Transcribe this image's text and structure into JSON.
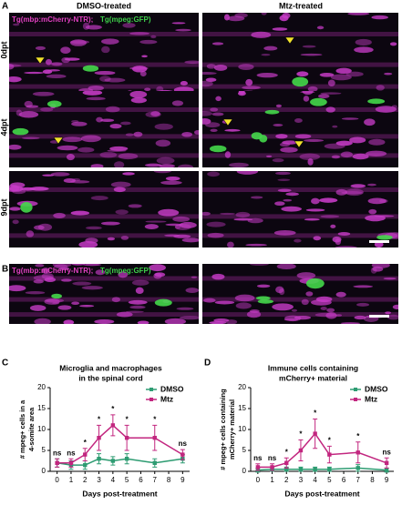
{
  "panel_a": {
    "label": "A",
    "columns": [
      "DMSO-treated",
      "Mtz-treated"
    ],
    "rows": [
      "0dpt",
      "4dpt",
      "9dpt"
    ],
    "overlay": [
      "Tg(mbp:mCherry-NTR);",
      "Tg(mpeg:GFP)"
    ]
  },
  "panel_b": {
    "label": "B",
    "overlay": [
      "Tg(mbp:mCherry-NTR);",
      "Tg(mpeg:GFP)"
    ]
  },
  "chart_data": [
    {
      "type": "line",
      "panel": "C",
      "title": [
        "Microglia and macrophages",
        "in the spinal cord"
      ],
      "ylabel": [
        "# mpeg+ cells in a",
        "4-somite area"
      ],
      "xlabel": "Days post-treatment",
      "x": [
        0,
        1,
        2,
        3,
        4,
        5,
        7,
        9
      ],
      "xlim": [
        -0.5,
        9.5
      ],
      "xticks": [
        0,
        1,
        2,
        3,
        4,
        5,
        6,
        7,
        8,
        9
      ],
      "ylim": [
        0,
        20
      ],
      "yticks": [
        0,
        5,
        10,
        15,
        20
      ],
      "legend": "upper right",
      "series": [
        {
          "name": "DMSO",
          "color": "#2e9c72",
          "values": [
            2,
            1.5,
            1.5,
            3,
            2.5,
            3,
            2,
            3
          ],
          "errors": [
            1,
            1,
            1,
            1.2,
            1,
            1.2,
            1,
            1
          ]
        },
        {
          "name": "Mtz",
          "color": "#c2267f",
          "values": [
            2,
            2,
            4,
            8,
            11,
            8,
            8,
            4
          ],
          "errors": [
            1,
            1,
            1.5,
            3,
            2.5,
            3,
            3,
            1.2
          ]
        }
      ],
      "significance": [
        "ns",
        "ns",
        "*",
        "*",
        "*",
        "*",
        "*",
        "ns"
      ]
    },
    {
      "type": "line",
      "panel": "D",
      "title": [
        "Immune cells containing",
        "mCherry+ material"
      ],
      "ylabel": [
        "# mpeg+ cells containing",
        "mCherry+ material"
      ],
      "xlabel": "Days post-treatment",
      "x": [
        0,
        1,
        2,
        3,
        4,
        5,
        7,
        9
      ],
      "xlim": [
        -0.5,
        9.5
      ],
      "xticks": [
        0,
        1,
        2,
        3,
        4,
        5,
        6,
        7,
        8,
        9
      ],
      "ylim": [
        0,
        20
      ],
      "yticks": [
        0,
        5,
        10,
        15,
        20
      ],
      "legend": "upper right",
      "series": [
        {
          "name": "DMSO",
          "color": "#2e9c72",
          "values": [
            0.3,
            0.5,
            0.5,
            0.5,
            0.5,
            0.5,
            0.8,
            0.3
          ],
          "errors": [
            0.5,
            0.5,
            0.5,
            0.5,
            0.5,
            0.5,
            0.8,
            0.5
          ]
        },
        {
          "name": "Mtz",
          "color": "#c2267f",
          "values": [
            1,
            1,
            2,
            5,
            9,
            4,
            4.5,
            2
          ],
          "errors": [
            0.8,
            0.8,
            1.2,
            2.5,
            3.5,
            2,
            2.5,
            1.2
          ]
        }
      ],
      "significance": [
        "ns",
        "ns",
        "*",
        "*",
        "*",
        "*",
        "*",
        "ns"
      ]
    }
  ]
}
